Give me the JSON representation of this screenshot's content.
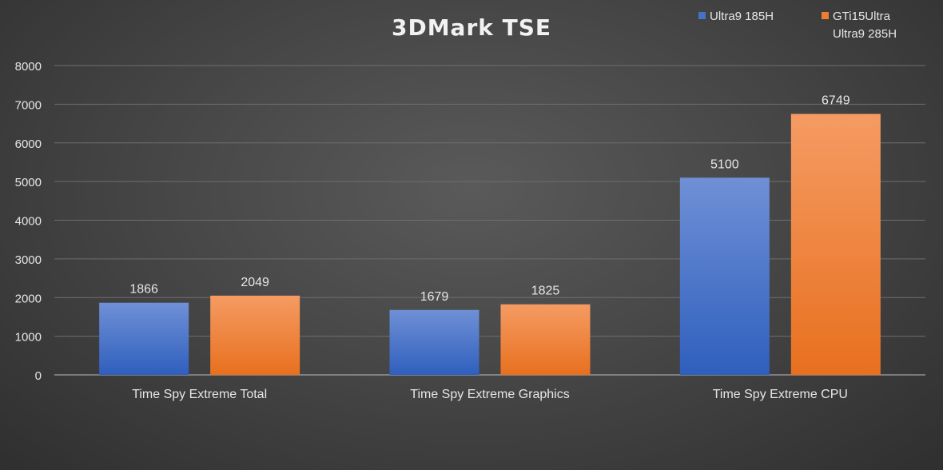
{
  "chart_data": {
    "type": "bar",
    "title": "3DMark TSE",
    "categories": [
      "Time Spy Extreme Total",
      "Time Spy Extreme Graphics",
      "Time Spy Extreme CPU"
    ],
    "series": [
      {
        "name": "Ultra9 185H",
        "color": "#4472c4",
        "values": [
          1866,
          1679,
          5100
        ]
      },
      {
        "name": "GTi15Ultra\nUltra9 285H",
        "color": "#ed7d31",
        "values": [
          2049,
          1825,
          6749
        ]
      }
    ],
    "ylim": [
      0,
      8000
    ],
    "yticks": [
      0,
      1000,
      2000,
      3000,
      4000,
      5000,
      6000,
      7000,
      8000
    ],
    "xlabel": "",
    "ylabel": "",
    "grid": true,
    "legend_position": "top-right"
  }
}
